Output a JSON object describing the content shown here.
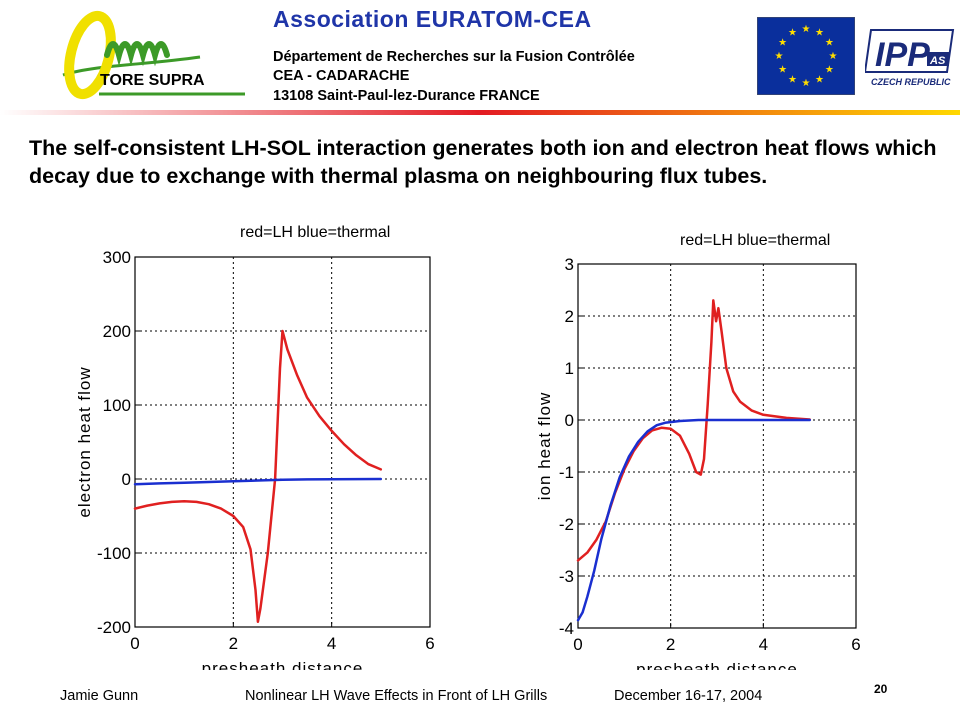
{
  "header": {
    "logo_text": "TORE SUPRA",
    "org_title": "Association  EURATOM-CEA",
    "dept": "Département de Recherches sur la Fusion Contrôlée",
    "site": "CEA - CADARACHE",
    "address": "13108 Saint-Paul-lez-Durance   FRANCE",
    "ipp_label": "IPP",
    "ipp_sub": "AS",
    "ipp_country": "CZECH REPUBLIC"
  },
  "slide": {
    "text": "The self-consistent LH-SOL interaction generates both ion and electron heat flows which decay due to exchange with thermal plasma on neighbouring flux tubes."
  },
  "footer": {
    "author": "Jamie Gunn",
    "talk_title": "Nonlinear LH Wave Effects in Front of LH Grills",
    "date": "December 16-17, 2004",
    "page": "20"
  },
  "colors": {
    "title_blue": "#1f35a8",
    "logo_green": "#3c9a28",
    "logo_yellow": "#f0e000",
    "header_rule_red": "#e31b23",
    "header_rule_yellow": "#ffd800",
    "eu_blue": "#0a2f9c",
    "eu_star": "#ffdd00",
    "lh_red": "#e02020",
    "thermal_blue": "#1a2fd0"
  },
  "chart_data": [
    {
      "type": "line",
      "title": "red=LH          blue=thermal",
      "xlabel": "presheath distance",
      "ylabel": "electron heat flow",
      "xlim": [
        0,
        6
      ],
      "ylim": [
        -200,
        300
      ],
      "xticks": [
        "0",
        "2",
        "4",
        "6"
      ],
      "yticks": [
        "300",
        "200",
        "100",
        "0",
        "-100",
        "-200"
      ],
      "xtick_values": [
        0,
        2,
        4,
        6
      ],
      "ytick_values": [
        300,
        200,
        100,
        0,
        -100,
        -200
      ],
      "grid": true,
      "series": [
        {
          "name": "LH",
          "color": "#e02020",
          "points": [
            [
              0,
              -40
            ],
            [
              0.25,
              -36
            ],
            [
              0.5,
              -33
            ],
            [
              0.75,
              -31
            ],
            [
              1.0,
              -30
            ],
            [
              1.25,
              -31
            ],
            [
              1.5,
              -34
            ],
            [
              1.75,
              -40
            ],
            [
              2.0,
              -50
            ],
            [
              2.2,
              -65
            ],
            [
              2.35,
              -95
            ],
            [
              2.45,
              -150
            ],
            [
              2.5,
              -193
            ],
            [
              2.55,
              -175
            ],
            [
              2.7,
              -100
            ],
            [
              2.85,
              0
            ],
            [
              2.95,
              150
            ],
            [
              3.0,
              200
            ],
            [
              3.1,
              175
            ],
            [
              3.3,
              140
            ],
            [
              3.5,
              110
            ],
            [
              3.75,
              85
            ],
            [
              4.0,
              65
            ],
            [
              4.25,
              47
            ],
            [
              4.5,
              32
            ],
            [
              4.75,
              20
            ],
            [
              5.0,
              13
            ]
          ]
        },
        {
          "name": "thermal",
          "color": "#1a2fd0",
          "points": [
            [
              0,
              -7
            ],
            [
              0.5,
              -6
            ],
            [
              1.0,
              -5
            ],
            [
              1.5,
              -4
            ],
            [
              2.0,
              -3
            ],
            [
              2.5,
              -2
            ],
            [
              3.0,
              -1
            ],
            [
              3.5,
              -0.5
            ],
            [
              4.0,
              -0.3
            ],
            [
              5.0,
              0
            ]
          ]
        }
      ]
    },
    {
      "type": "line",
      "title": "red=LH          blue=thermal",
      "xlabel": "presheath distance",
      "ylabel": "ion heat flow",
      "xlim": [
        0,
        6
      ],
      "ylim": [
        -4,
        3
      ],
      "xticks": [
        "0",
        "2",
        "4",
        "6"
      ],
      "yticks": [
        "3",
        "2",
        "1",
        "0",
        "-1",
        "-2",
        "-3",
        "-4"
      ],
      "xtick_values": [
        0,
        2,
        4,
        6
      ],
      "ytick_values": [
        3,
        2,
        1,
        0,
        -1,
        -2,
        -3,
        -4
      ],
      "grid": true,
      "series": [
        {
          "name": "LH",
          "color": "#e02020",
          "points": [
            [
              0,
              -2.7
            ],
            [
              0.2,
              -2.55
            ],
            [
              0.4,
              -2.3
            ],
            [
              0.6,
              -1.95
            ],
            [
              0.8,
              -1.4
            ],
            [
              1.0,
              -0.95
            ],
            [
              1.2,
              -0.6
            ],
            [
              1.4,
              -0.35
            ],
            [
              1.6,
              -0.2
            ],
            [
              1.8,
              -0.15
            ],
            [
              2.0,
              -0.17
            ],
            [
              2.2,
              -0.3
            ],
            [
              2.4,
              -0.65
            ],
            [
              2.55,
              -1.0
            ],
            [
              2.65,
              -1.05
            ],
            [
              2.72,
              -0.75
            ],
            [
              2.8,
              0.3
            ],
            [
              2.88,
              1.5
            ],
            [
              2.92,
              2.3
            ],
            [
              2.98,
              1.9
            ],
            [
              3.03,
              2.15
            ],
            [
              3.1,
              1.7
            ],
            [
              3.2,
              1.0
            ],
            [
              3.35,
              0.55
            ],
            [
              3.5,
              0.35
            ],
            [
              3.75,
              0.18
            ],
            [
              4.0,
              0.1
            ],
            [
              4.5,
              0.04
            ],
            [
              5.0,
              0.01
            ]
          ]
        },
        {
          "name": "thermal",
          "color": "#1a2fd0",
          "points": [
            [
              0,
              -3.85
            ],
            [
              0.1,
              -3.7
            ],
            [
              0.2,
              -3.4
            ],
            [
              0.35,
              -2.9
            ],
            [
              0.5,
              -2.3
            ],
            [
              0.7,
              -1.65
            ],
            [
              0.9,
              -1.1
            ],
            [
              1.1,
              -0.7
            ],
            [
              1.3,
              -0.42
            ],
            [
              1.5,
              -0.22
            ],
            [
              1.7,
              -0.1
            ],
            [
              1.9,
              -0.05
            ],
            [
              2.2,
              -0.02
            ],
            [
              2.6,
              0
            ],
            [
              3.0,
              0
            ],
            [
              5.0,
              0
            ]
          ]
        }
      ]
    }
  ]
}
